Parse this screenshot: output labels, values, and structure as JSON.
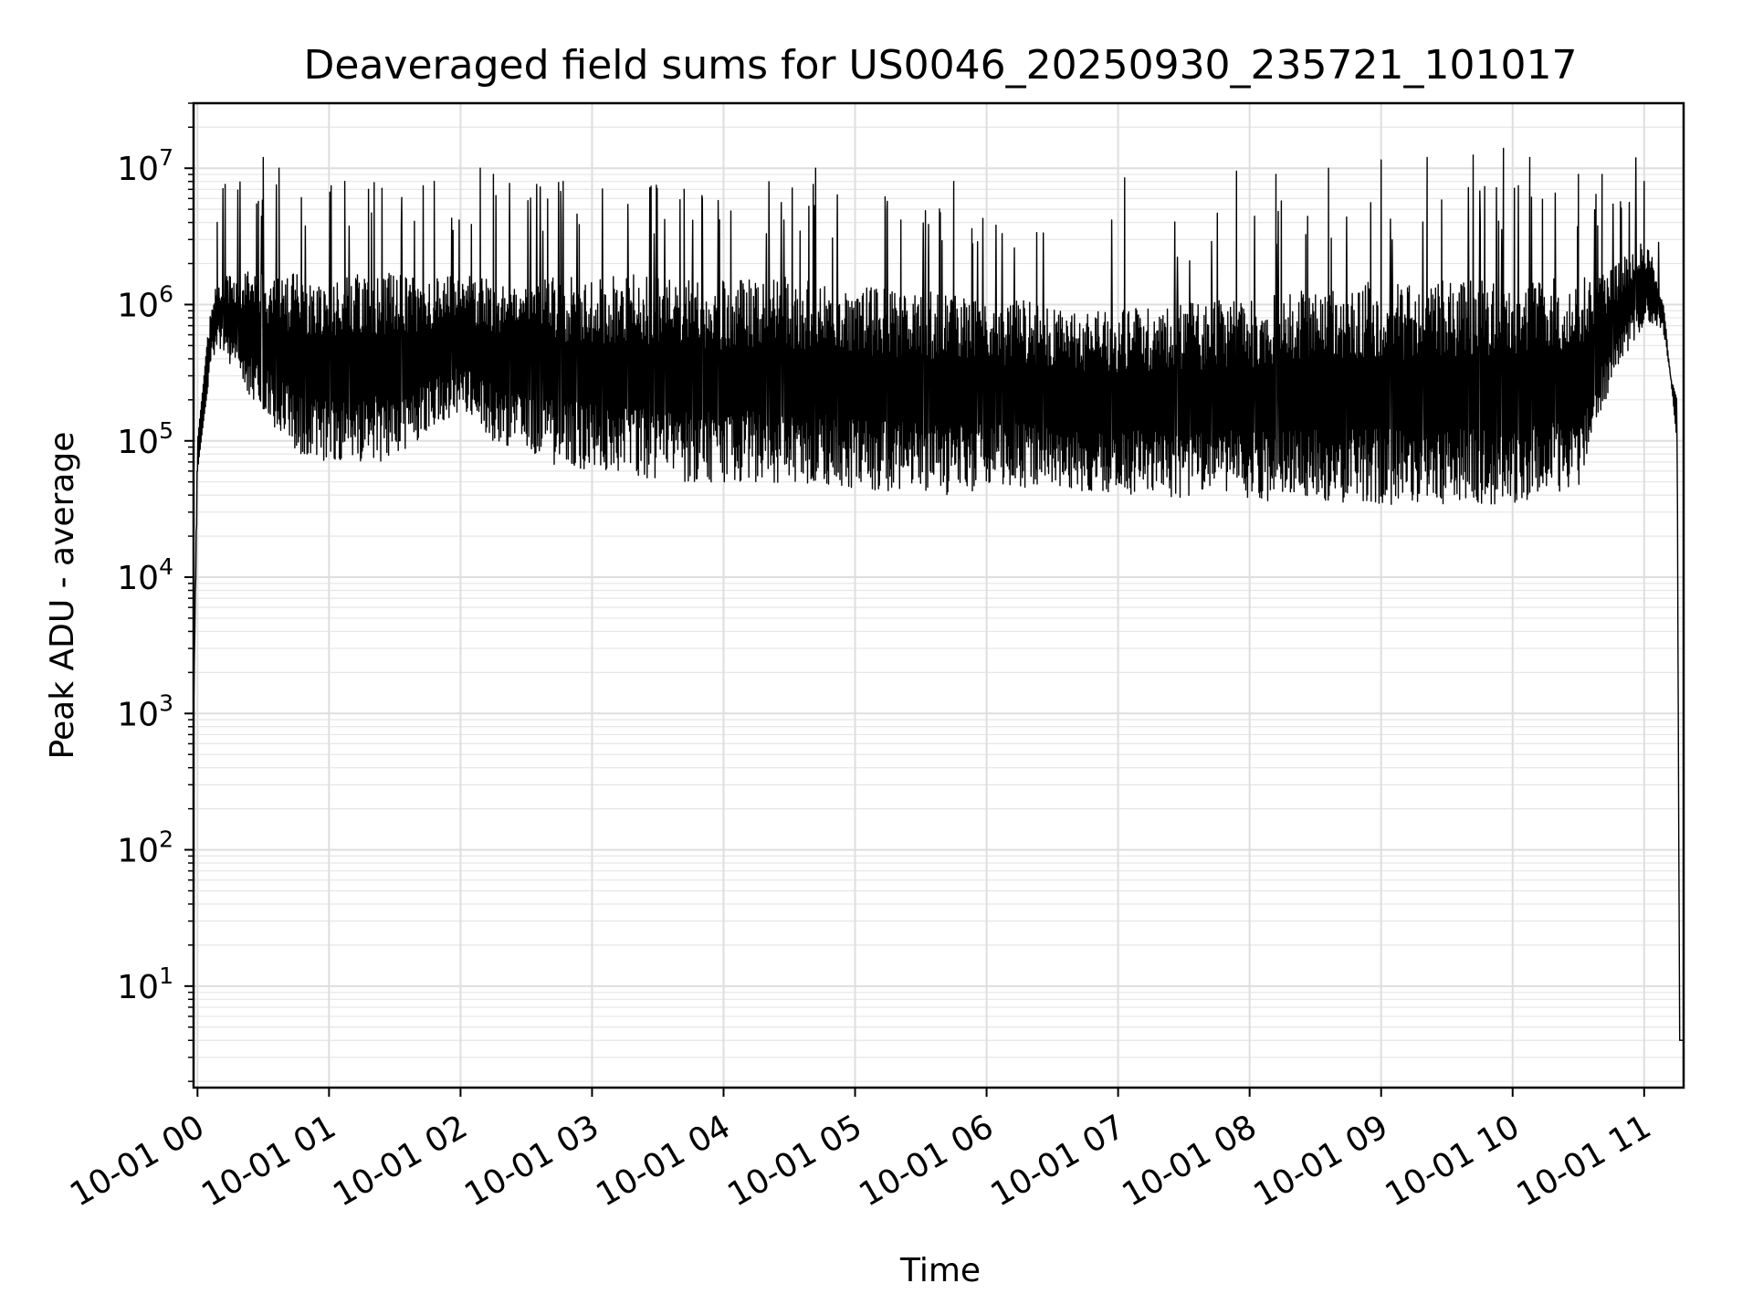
{
  "chart_data": {
    "type": "line",
    "title": "Deaveraged field sums for US0046_20250930_235721_101017",
    "xlabel": "Time",
    "ylabel": "Peak ADU - average",
    "yscale": "log",
    "ylim": [
      1.8,
      30000000
    ],
    "xlim_hours": [
      -0.03,
      11.3
    ],
    "grid": true,
    "line_color": "#000000",
    "x_ticks": [
      {
        "hour": 0,
        "label": "10-01 00"
      },
      {
        "hour": 1,
        "label": "10-01 01"
      },
      {
        "hour": 2,
        "label": "10-01 02"
      },
      {
        "hour": 3,
        "label": "10-01 03"
      },
      {
        "hour": 4,
        "label": "10-01 04"
      },
      {
        "hour": 5,
        "label": "10-01 05"
      },
      {
        "hour": 6,
        "label": "10-01 06"
      },
      {
        "hour": 7,
        "label": "10-01 07"
      },
      {
        "hour": 8,
        "label": "10-01 08"
      },
      {
        "hour": 9,
        "label": "10-01 09"
      },
      {
        "hour": 10,
        "label": "10-01 10"
      },
      {
        "hour": 11,
        "label": "10-01 11"
      }
    ],
    "y_ticks": [
      {
        "value": 10,
        "base": "10",
        "exp": "1"
      },
      {
        "value": 100,
        "base": "10",
        "exp": "2"
      },
      {
        "value": 1000,
        "base": "10",
        "exp": "3"
      },
      {
        "value": 10000,
        "base": "10",
        "exp": "4"
      },
      {
        "value": 100000,
        "base": "10",
        "exp": "5"
      },
      {
        "value": 1000000,
        "base": "10",
        "exp": "6"
      },
      {
        "value": 10000000,
        "base": "10",
        "exp": "7"
      }
    ],
    "series": [
      {
        "name": "Peak ADU - average",
        "envelope_hours": [
          -0.03,
          0.0,
          0.05,
          0.1,
          0.15,
          0.3,
          0.5,
          0.75,
          1.0,
          1.25,
          1.5,
          1.75,
          2.0,
          2.25,
          2.5,
          2.75,
          3.0,
          3.25,
          3.5,
          3.75,
          4.0,
          4.25,
          4.5,
          4.75,
          5.0,
          5.25,
          5.5,
          5.75,
          6.0,
          6.25,
          6.5,
          6.75,
          7.0,
          7.25,
          7.5,
          7.75,
          8.0,
          8.25,
          8.5,
          8.75,
          9.0,
          9.25,
          9.5,
          9.75,
          10.0,
          10.25,
          10.5,
          10.65,
          10.8,
          10.9,
          11.0,
          11.05,
          11.1,
          11.15,
          11.2,
          11.25,
          11.27,
          11.3
        ],
        "envelope_high": [
          1000,
          100000,
          300000,
          1000000,
          1500000,
          1800000,
          1700000,
          1700000,
          1600000,
          1700000,
          1700000,
          1600000,
          1700000,
          1600000,
          1500000,
          1600000,
          1600000,
          1700000,
          1600000,
          1600000,
          1500000,
          1600000,
          1600000,
          1500000,
          1400000,
          1300000,
          1300000,
          1200000,
          1000000,
          1100000,
          1000000,
          900000,
          900000,
          1000000,
          1000000,
          1100000,
          1100000,
          1200000,
          1300000,
          1400000,
          1500000,
          1400000,
          1500000,
          1500000,
          1500000,
          1600000,
          1600000,
          1700000,
          2000000,
          2500000,
          3000000,
          2500000,
          1500000,
          1000000,
          300000,
          200000,
          4,
          4
        ],
        "envelope_low": [
          1000,
          60000,
          150000,
          350000,
          500000,
          300000,
          150000,
          80000,
          70000,
          70000,
          70000,
          120000,
          160000,
          100000,
          80000,
          65000,
          60000,
          55000,
          50000,
          50000,
          50000,
          50000,
          48000,
          48000,
          45000,
          42000,
          40000,
          40000,
          45000,
          45000,
          45000,
          42000,
          40000,
          40000,
          38000,
          37000,
          36000,
          36000,
          35000,
          35000,
          34000,
          33000,
          33000,
          34000,
          34000,
          36000,
          45000,
          150000,
          300000,
          500000,
          700000,
          700000,
          700000,
          600000,
          300000,
          100000,
          4,
          4
        ],
        "spikes": [
          {
            "hour": 0.15,
            "value": 4000000
          },
          {
            "hour": 0.5,
            "value": 12000000
          },
          {
            "hour": 0.62,
            "value": 10000000
          },
          {
            "hour": 1.12,
            "value": 8000000
          },
          {
            "hour": 1.3,
            "value": 7000000
          },
          {
            "hour": 1.8,
            "value": 8000000
          },
          {
            "hour": 2.15,
            "value": 10000000
          },
          {
            "hour": 2.25,
            "value": 9000000
          },
          {
            "hour": 2.78,
            "value": 8000000
          },
          {
            "hour": 3.7,
            "value": 7000000
          },
          {
            "hour": 4.7,
            "value": 10000000
          },
          {
            "hour": 5.75,
            "value": 8000000
          },
          {
            "hour": 7.05,
            "value": 8500000
          },
          {
            "hour": 7.9,
            "value": 9500000
          },
          {
            "hour": 8.2,
            "value": 9000000
          },
          {
            "hour": 8.6,
            "value": 10000000
          },
          {
            "hour": 9.0,
            "value": 11500000
          },
          {
            "hour": 9.35,
            "value": 12000000
          },
          {
            "hour": 9.7,
            "value": 12500000
          },
          {
            "hour": 9.93,
            "value": 14000000
          },
          {
            "hour": 10.13,
            "value": 12000000
          },
          {
            "hour": 10.5,
            "value": 9000000
          },
          {
            "hour": 10.68,
            "value": 9000000
          },
          {
            "hour": 11.0,
            "value": 8000000
          }
        ]
      }
    ]
  }
}
